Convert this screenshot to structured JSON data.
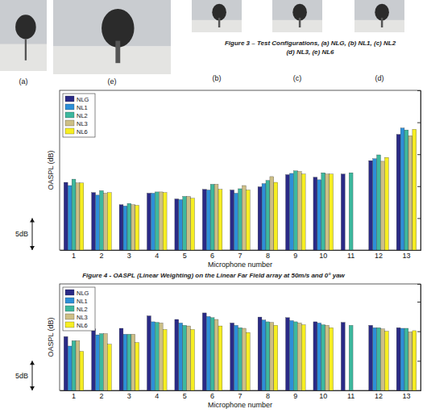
{
  "figure3": {
    "caption": [
      "Figure 3 – Test Configurations, (a) NLG, (b) NL1, (c) NL2",
      "(d) NL3, (e) NL6"
    ],
    "panels": [
      "(a)",
      "(e)",
      "(b)",
      "(c)",
      "(d)"
    ]
  },
  "chart_data": [
    {
      "type": "bar",
      "title": "Figure 4 - OASPL (Linear Weighting) on the Linear Far Field array at 50m/s and 0° yaw",
      "x_label": "Microphone number",
      "y_label": "OASPL (dB)",
      "categories": [
        1,
        2,
        3,
        4,
        5,
        6,
        7,
        8,
        9,
        10,
        11,
        12,
        13
      ],
      "series": [
        {
          "name": "NLG",
          "color": "#2a2a86",
          "values": [
            10.6,
            9.0,
            7.1,
            8.9,
            8.0,
            9.5,
            9.4,
            9.9,
            11.8,
            11.4,
            11.9,
            14.0,
            18.1
          ]
        },
        {
          "name": "NL1",
          "color": "#2d8fd8",
          "values": [
            10.1,
            8.6,
            6.9,
            8.9,
            7.9,
            9.4,
            8.9,
            10.4,
            12.0,
            11.0,
            null,
            14.3,
            19.1
          ]
        },
        {
          "name": "NL2",
          "color": "#3db89e",
          "values": [
            11.1,
            9.3,
            7.3,
            9.1,
            8.4,
            10.3,
            9.6,
            10.9,
            12.4,
            12.1,
            12.1,
            14.9,
            18.8
          ]
        },
        {
          "name": "NL3",
          "color": "#cdbf86",
          "values": [
            10.5,
            8.9,
            7.1,
            9.1,
            8.4,
            10.3,
            10.1,
            11.5,
            12.3,
            11.9,
            null,
            13.9,
            17.9
          ]
        },
        {
          "name": "NL6",
          "color": "#f6ee22",
          "values": [
            10.5,
            9.0,
            7.0,
            9.0,
            8.1,
            9.5,
            9.4,
            10.6,
            11.9,
            11.9,
            null,
            14.5,
            18.9
          ]
        }
      ],
      "ylim": [
        0,
        25
      ],
      "yticks": [
        5,
        10,
        15,
        20
      ],
      "scale_bar": {
        "label": "5dB",
        "value": 5
      },
      "grid": false,
      "legend": "upper left",
      "tick_labels": "x"
    },
    {
      "type": "bar",
      "x_label": "Microphone number",
      "y_label": "OASPL (dB)",
      "categories": [
        1,
        2,
        3,
        4,
        5,
        6,
        7,
        8,
        9,
        10,
        11,
        12,
        13
      ],
      "series": [
        {
          "name": "NLG",
          "color": "#2a2a86",
          "values": [
            9.1,
            10.4,
            10.5,
            12.6,
            12.0,
            13.1,
            11.4,
            12.4,
            12.3,
            11.6,
            11.5,
            11.0,
            10.6
          ]
        },
        {
          "name": "NL1",
          "color": "#2d8fd8",
          "values": [
            7.5,
            9.4,
            9.5,
            11.6,
            11.4,
            12.5,
            11.0,
            11.9,
            11.8,
            11.4,
            null,
            10.6,
            10.5
          ]
        },
        {
          "name": "NL2",
          "color": "#3db89e",
          "values": [
            8.4,
            9.6,
            9.5,
            11.5,
            11.0,
            12.3,
            10.6,
            11.6,
            11.6,
            11.1,
            11.0,
            10.6,
            10.5
          ]
        },
        {
          "name": "NL3",
          "color": "#cdbf86",
          "values": [
            8.4,
            9.6,
            9.5,
            11.4,
            10.9,
            12.0,
            10.5,
            11.5,
            11.4,
            11.0,
            null,
            10.4,
            9.9
          ]
        },
        {
          "name": "NL6",
          "color": "#f6ee22",
          "values": [
            6.6,
            7.8,
            8.1,
            10.3,
            10.3,
            10.9,
            9.8,
            11.0,
            11.1,
            10.6,
            null,
            10.0,
            10.1
          ]
        }
      ],
      "ylim": [
        0,
        18
      ],
      "yticks": [
        5,
        10,
        15
      ],
      "scale_bar": {
        "label": "5dB",
        "value": 5
      },
      "grid": false,
      "legend": "upper left",
      "tick_labels": "x"
    }
  ]
}
